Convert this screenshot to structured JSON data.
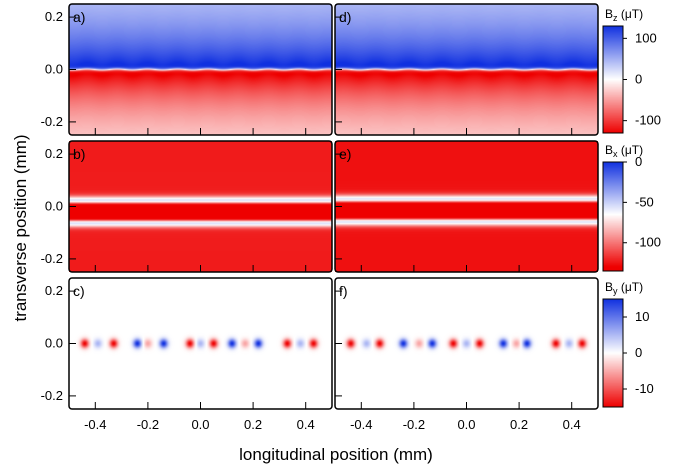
{
  "chart_data": {
    "type": "heatmap",
    "xlabel": "longitudinal position (mm)",
    "ylabel": "transverse position (mm)",
    "xlim": [
      -0.5,
      0.5
    ],
    "ylim": [
      -0.25,
      0.25
    ],
    "x_ticks": [
      "-0.4",
      "-0.2",
      "0.0",
      "0.2",
      "0.4"
    ],
    "x_tick_values": [
      -0.4,
      -0.2,
      0.0,
      0.2,
      0.4
    ],
    "y_ticks": [
      "0.2",
      "0.0",
      "-0.2"
    ],
    "y_tick_values": [
      0.2,
      0.0,
      -0.2
    ],
    "colormap": {
      "negative": "#ee0000",
      "zero": "#ffffff",
      "positive": "#1030e0"
    },
    "panels": [
      {
        "label": "a)",
        "row": 0,
        "col": 0,
        "component": "Bz",
        "pattern": "step",
        "sign": -1,
        "peak_uT": 130,
        "mod_uT": 6,
        "mod_period_mm": 0.115
      },
      {
        "label": "d)",
        "row": 0,
        "col": 1,
        "component": "Bz",
        "pattern": "step",
        "sign": -1,
        "peak_uT": 130,
        "mod_uT": 6,
        "mod_period_mm": 0.125
      },
      {
        "label": "b)",
        "row": 1,
        "col": 0,
        "component": "Bx",
        "pattern": "dip",
        "center_mm": 0.0,
        "min_uT": -130,
        "base_uT": -5
      },
      {
        "label": "e)",
        "row": 1,
        "col": 1,
        "component": "Bx",
        "pattern": "dip",
        "center_mm": 0.005,
        "min_uT": -130,
        "base_uT": -8
      },
      {
        "label": "c)",
        "row": 2,
        "col": 0,
        "component": "By",
        "pattern": "dipoles",
        "peak_uT": 15,
        "positions_mm": [
          -0.44,
          -0.39,
          -0.33,
          -0.24,
          -0.2,
          -0.14,
          -0.04,
          0.0,
          0.05,
          0.12,
          0.17,
          0.22,
          0.33,
          0.38,
          0.43
        ]
      },
      {
        "label": "f)",
        "row": 2,
        "col": 1,
        "component": "By",
        "pattern": "dipoles",
        "peak_uT": 15,
        "positions_mm": [
          -0.44,
          -0.38,
          -0.33,
          -0.24,
          -0.18,
          -0.13,
          -0.05,
          0.0,
          0.05,
          0.14,
          0.19,
          0.23,
          0.34,
          0.39,
          0.44
        ]
      }
    ],
    "colorbars": [
      {
        "title_base": "B",
        "title_sub": "z",
        "title_unit": "(μT)",
        "range": [
          -130,
          130
        ],
        "ticks": [
          "100",
          "0",
          "-100"
        ],
        "tick_values": [
          100,
          0,
          -100
        ]
      },
      {
        "title_base": "B",
        "title_sub": "x",
        "title_unit": "(μT)",
        "range": [
          -135,
          0
        ],
        "ticks": [
          "0",
          "-50",
          "-100"
        ],
        "tick_values": [
          0,
          -50,
          -100
        ]
      },
      {
        "title_base": "B",
        "title_sub": "y",
        "title_unit": "(μT)",
        "range": [
          -15,
          15
        ],
        "ticks": [
          "10",
          "0",
          "-10"
        ],
        "tick_values": [
          10,
          0,
          -10
        ]
      }
    ]
  }
}
